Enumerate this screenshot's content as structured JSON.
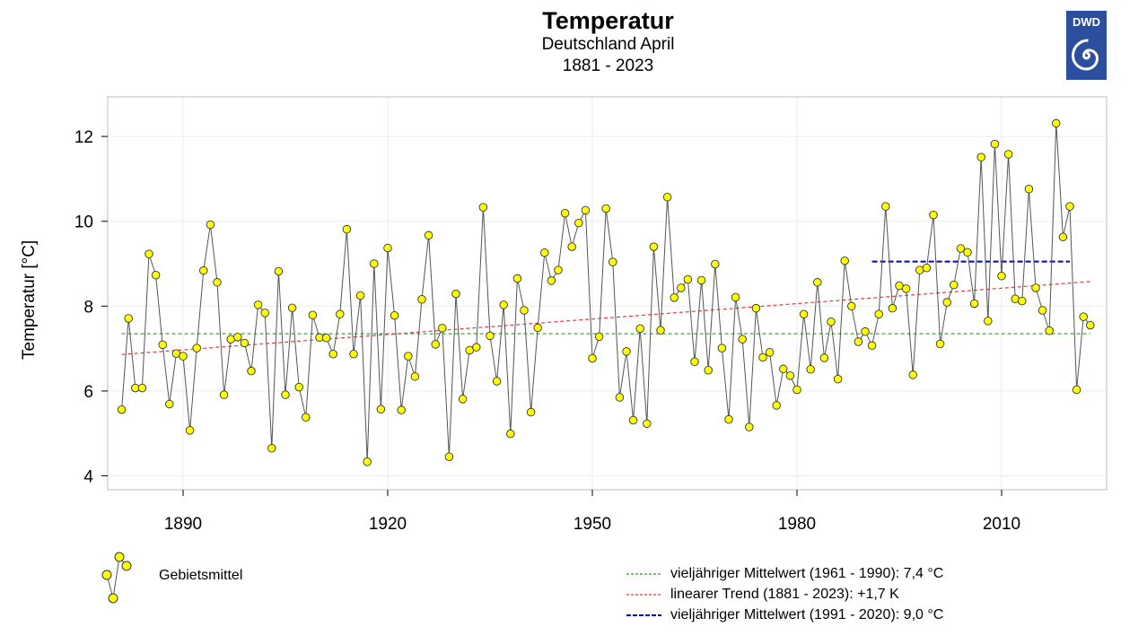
{
  "header": {
    "title": "Temperatur",
    "subtitle_line1": "Deutschland April",
    "subtitle_line2": "1881 - 2023",
    "logo_text": "DWD"
  },
  "colors": {
    "points": "#ffff00",
    "line": "#555555",
    "mean_1961_1990": "#2e9b2e",
    "trend": "#e83a3a",
    "mean_1991_2020": "#0000cc",
    "logo_bg": "#2b4f9e"
  },
  "chart_data": {
    "type": "line",
    "title": "Temperatur",
    "subtitle": "Deutschland April 1881 - 2023",
    "xlabel": "",
    "ylabel": "Temperatur [°C]",
    "xlim": [
      1880,
      2024
    ],
    "ylim": [
      3.7,
      13.0
    ],
    "xticks": [
      1890,
      1920,
      1950,
      1980,
      2010
    ],
    "yticks": [
      4,
      6,
      8,
      10,
      12
    ],
    "grid": true,
    "x_start": 1881,
    "values": [
      5.56,
      7.71,
      6.07,
      6.07,
      9.23,
      8.73,
      7.09,
      5.69,
      6.88,
      6.82,
      5.07,
      7.01,
      8.84,
      9.92,
      8.56,
      5.91,
      7.22,
      7.27,
      7.13,
      6.47,
      8.03,
      7.84,
      4.65,
      8.82,
      5.91,
      7.96,
      6.09,
      5.38,
      7.79,
      7.26,
      7.25,
      6.87,
      7.81,
      9.81,
      6.87,
      8.25,
      4.33,
      9.0,
      5.57,
      9.37,
      7.78,
      5.55,
      6.82,
      6.34,
      8.16,
      9.67,
      7.1,
      7.48,
      4.45,
      8.29,
      5.81,
      6.96,
      7.03,
      10.33,
      7.3,
      6.23,
      8.03,
      4.99,
      8.65,
      7.9,
      5.5,
      7.49,
      9.26,
      8.6,
      8.85,
      10.19,
      9.4,
      9.96,
      10.26,
      6.77,
      7.28,
      10.3,
      9.04,
      5.85,
      6.93,
      5.31,
      7.47,
      5.23,
      9.4,
      7.43,
      10.57,
      8.2,
      8.43,
      8.63,
      6.69,
      8.61,
      6.49,
      8.99,
      7.01,
      5.33,
      8.21,
      7.22,
      5.15,
      7.95,
      6.79,
      6.91,
      5.66,
      6.52,
      6.36,
      6.03,
      7.81,
      6.51,
      8.56,
      6.78,
      7.63,
      6.28,
      9.07,
      8.0,
      7.16,
      7.4,
      7.07,
      7.81,
      10.35,
      7.95,
      8.48,
      8.41,
      6.38,
      8.85,
      8.9,
      10.15,
      7.11,
      8.09,
      8.5,
      9.36,
      9.27,
      8.06,
      11.51,
      7.65,
      11.82,
      8.71,
      11.58,
      8.17,
      8.12,
      10.76,
      8.43,
      7.9,
      7.42,
      12.31,
      9.63,
      10.35,
      6.03,
      7.75,
      7.55
    ],
    "series": [
      {
        "name": "Gebietsmittel",
        "type": "line+points"
      }
    ],
    "reference_lines": [
      {
        "name": "vieljähriger Mittelwert (1961 - 1990): 7,4 °C",
        "x": [
          1881,
          2023
        ],
        "y": [
          7.35,
          7.35
        ],
        "style": "dashed"
      },
      {
        "name": "linearer Trend (1881 - 2023): +1,7 K",
        "x": [
          1881,
          2023
        ],
        "y": [
          6.86,
          8.58
        ],
        "style": "dashed"
      },
      {
        "name": "vieljähriger Mittelwert (1991 - 2020): 9,0 °C",
        "x": [
          1991,
          2020
        ],
        "y": [
          9.05,
          9.05
        ],
        "style": "dashed"
      }
    ]
  },
  "legend": {
    "points_label": "Gebietsmittel",
    "line1_label": "vieljähriger Mittelwert (1961 - 1990): 7,4 °C",
    "line2_label": "linearer Trend (1881 - 2023): +1,7 K",
    "line3_label": "vieljähriger Mittelwert (1991 - 2020): 9,0 °C"
  }
}
